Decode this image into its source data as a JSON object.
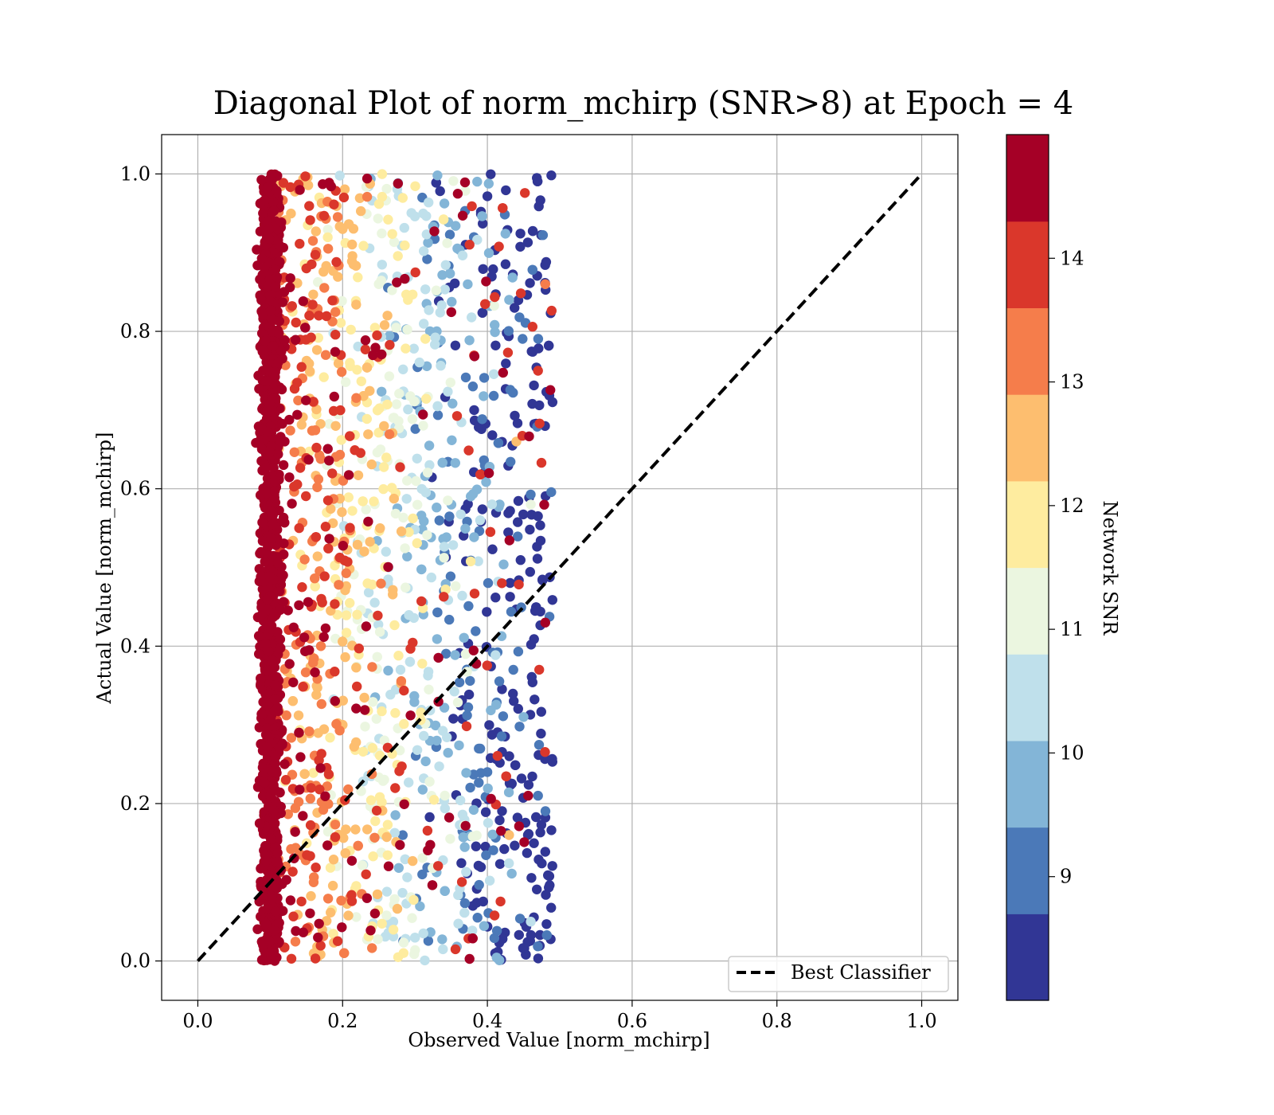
{
  "chart_data": {
    "type": "scatter",
    "title": "Diagonal Plot of norm_mchirp (SNR>8) at Epoch = 4",
    "xlabel": "Observed Value [norm_mchirp]",
    "ylabel": "Actual Value [norm_mchirp]",
    "xlim": [
      -0.05,
      1.05
    ],
    "ylim": [
      -0.05,
      1.05
    ],
    "xticks": [
      "0.0",
      "0.2",
      "0.4",
      "0.6",
      "0.8",
      "1.0"
    ],
    "yticks": [
      "0.0",
      "0.2",
      "0.4",
      "0.6",
      "0.8",
      "1.0"
    ],
    "grid": true,
    "legend": {
      "position": "lower-right",
      "entries": [
        "Best Classifier"
      ]
    },
    "reference_line": {
      "name": "Best Classifier",
      "x": [
        0.0,
        1.0
      ],
      "y": [
        0.0,
        1.0
      ],
      "style": "dashed",
      "color": "#000000"
    },
    "colorbar": {
      "label": "Network SNR",
      "range": [
        8.0,
        15.0
      ],
      "ticks": [
        "9",
        "10",
        "11",
        "12",
        "13",
        "14"
      ],
      "tick_values": [
        9,
        10,
        11,
        12,
        13,
        14
      ],
      "colors": [
        "#313695",
        "#4575b4",
        "#74add1",
        "#abd9e9",
        "#e0f3f8",
        "#ffffbf",
        "#fee090",
        "#fdae61",
        "#f46d43",
        "#d73027",
        "#a50026"
      ],
      "bands": [
        {
          "from": 8.0,
          "to": 8.7,
          "color": "#313695"
        },
        {
          "from": 8.7,
          "to": 9.4,
          "color": "#4b79b8"
        },
        {
          "from": 9.4,
          "to": 10.1,
          "color": "#83b5d7"
        },
        {
          "from": 10.1,
          "to": 10.8,
          "color": "#bfe0eb"
        },
        {
          "from": 10.8,
          "to": 11.5,
          "color": "#ebf6e0"
        },
        {
          "from": 11.5,
          "to": 12.2,
          "color": "#feec9f"
        },
        {
          "from": 12.2,
          "to": 12.9,
          "color": "#fdbe6f"
        },
        {
          "from": 12.9,
          "to": 13.6,
          "color": "#f57d4b"
        },
        {
          "from": 13.6,
          "to": 14.3,
          "color": "#da372b"
        },
        {
          "from": 14.3,
          "to": 15.0,
          "color": "#a50026"
        }
      ]
    },
    "series": [
      {
        "color_by": "Network SNR",
        "observed_range": [
          0.07,
          0.49
        ],
        "actual_range": [
          0.0,
          1.0
        ],
        "distribution": "high-SNR points concentrated at observed 0.07-0.13; SNR decreases as observed value increases toward 0.49",
        "points": [
          [
            0.09,
            0.95,
            14.8
          ],
          [
            0.1,
            0.9,
            14.9
          ],
          [
            0.11,
            0.82,
            14.7
          ],
          [
            0.09,
            0.75,
            14.8
          ],
          [
            0.12,
            0.66,
            14.5
          ],
          [
            0.1,
            0.58,
            14.9
          ],
          [
            0.11,
            0.5,
            14.8
          ],
          [
            0.09,
            0.42,
            14.7
          ],
          [
            0.1,
            0.33,
            14.9
          ],
          [
            0.12,
            0.25,
            14.6
          ],
          [
            0.1,
            0.17,
            14.8
          ],
          [
            0.11,
            0.08,
            14.7
          ],
          [
            0.09,
            0.02,
            14.9
          ],
          [
            0.15,
            0.88,
            13.8
          ],
          [
            0.16,
            0.71,
            13.5
          ],
          [
            0.14,
            0.55,
            14.0
          ],
          [
            0.17,
            0.4,
            13.2
          ],
          [
            0.15,
            0.22,
            13.6
          ],
          [
            0.16,
            0.1,
            13.1
          ],
          [
            0.2,
            0.93,
            12.4
          ],
          [
            0.21,
            0.76,
            12.1
          ],
          [
            0.19,
            0.61,
            12.6
          ],
          [
            0.22,
            0.44,
            11.8
          ],
          [
            0.2,
            0.3,
            12.3
          ],
          [
            0.21,
            0.14,
            11.6
          ],
          [
            0.25,
            0.86,
            10.9
          ],
          [
            0.27,
            0.69,
            11.2
          ],
          [
            0.26,
            0.52,
            10.6
          ],
          [
            0.28,
            0.37,
            10.4
          ],
          [
            0.25,
            0.2,
            11.0
          ],
          [
            0.27,
            0.05,
            10.2
          ],
          [
            0.31,
            0.97,
            9.4
          ],
          [
            0.33,
            0.8,
            9.9
          ],
          [
            0.32,
            0.63,
            10.3
          ],
          [
            0.34,
            0.47,
            9.1
          ],
          [
            0.33,
            0.28,
            9.6
          ],
          [
            0.31,
            0.11,
            8.9
          ],
          [
            0.37,
            0.91,
            8.6
          ],
          [
            0.38,
            0.73,
            9.2
          ],
          [
            0.39,
            0.56,
            10.7
          ],
          [
            0.37,
            0.39,
            11.4
          ],
          [
            0.4,
            0.24,
            8.8
          ],
          [
            0.38,
            0.07,
            8.4
          ],
          [
            0.43,
            0.84,
            9.7
          ],
          [
            0.44,
            0.66,
            12.7
          ],
          [
            0.42,
            0.48,
            13.9
          ],
          [
            0.45,
            0.31,
            10.1
          ],
          [
            0.43,
            0.16,
            12.9
          ],
          [
            0.47,
            0.75,
            14.2
          ],
          [
            0.48,
            0.43,
            14.6
          ],
          [
            0.46,
            0.58,
            11.3
          ],
          [
            0.47,
            0.21,
            9.0
          ],
          [
            0.49,
            0.71,
            8.3
          ],
          [
            0.48,
            0.86,
            13.4
          ],
          [
            0.46,
            0.05,
            10.8
          ]
        ]
      }
    ]
  }
}
